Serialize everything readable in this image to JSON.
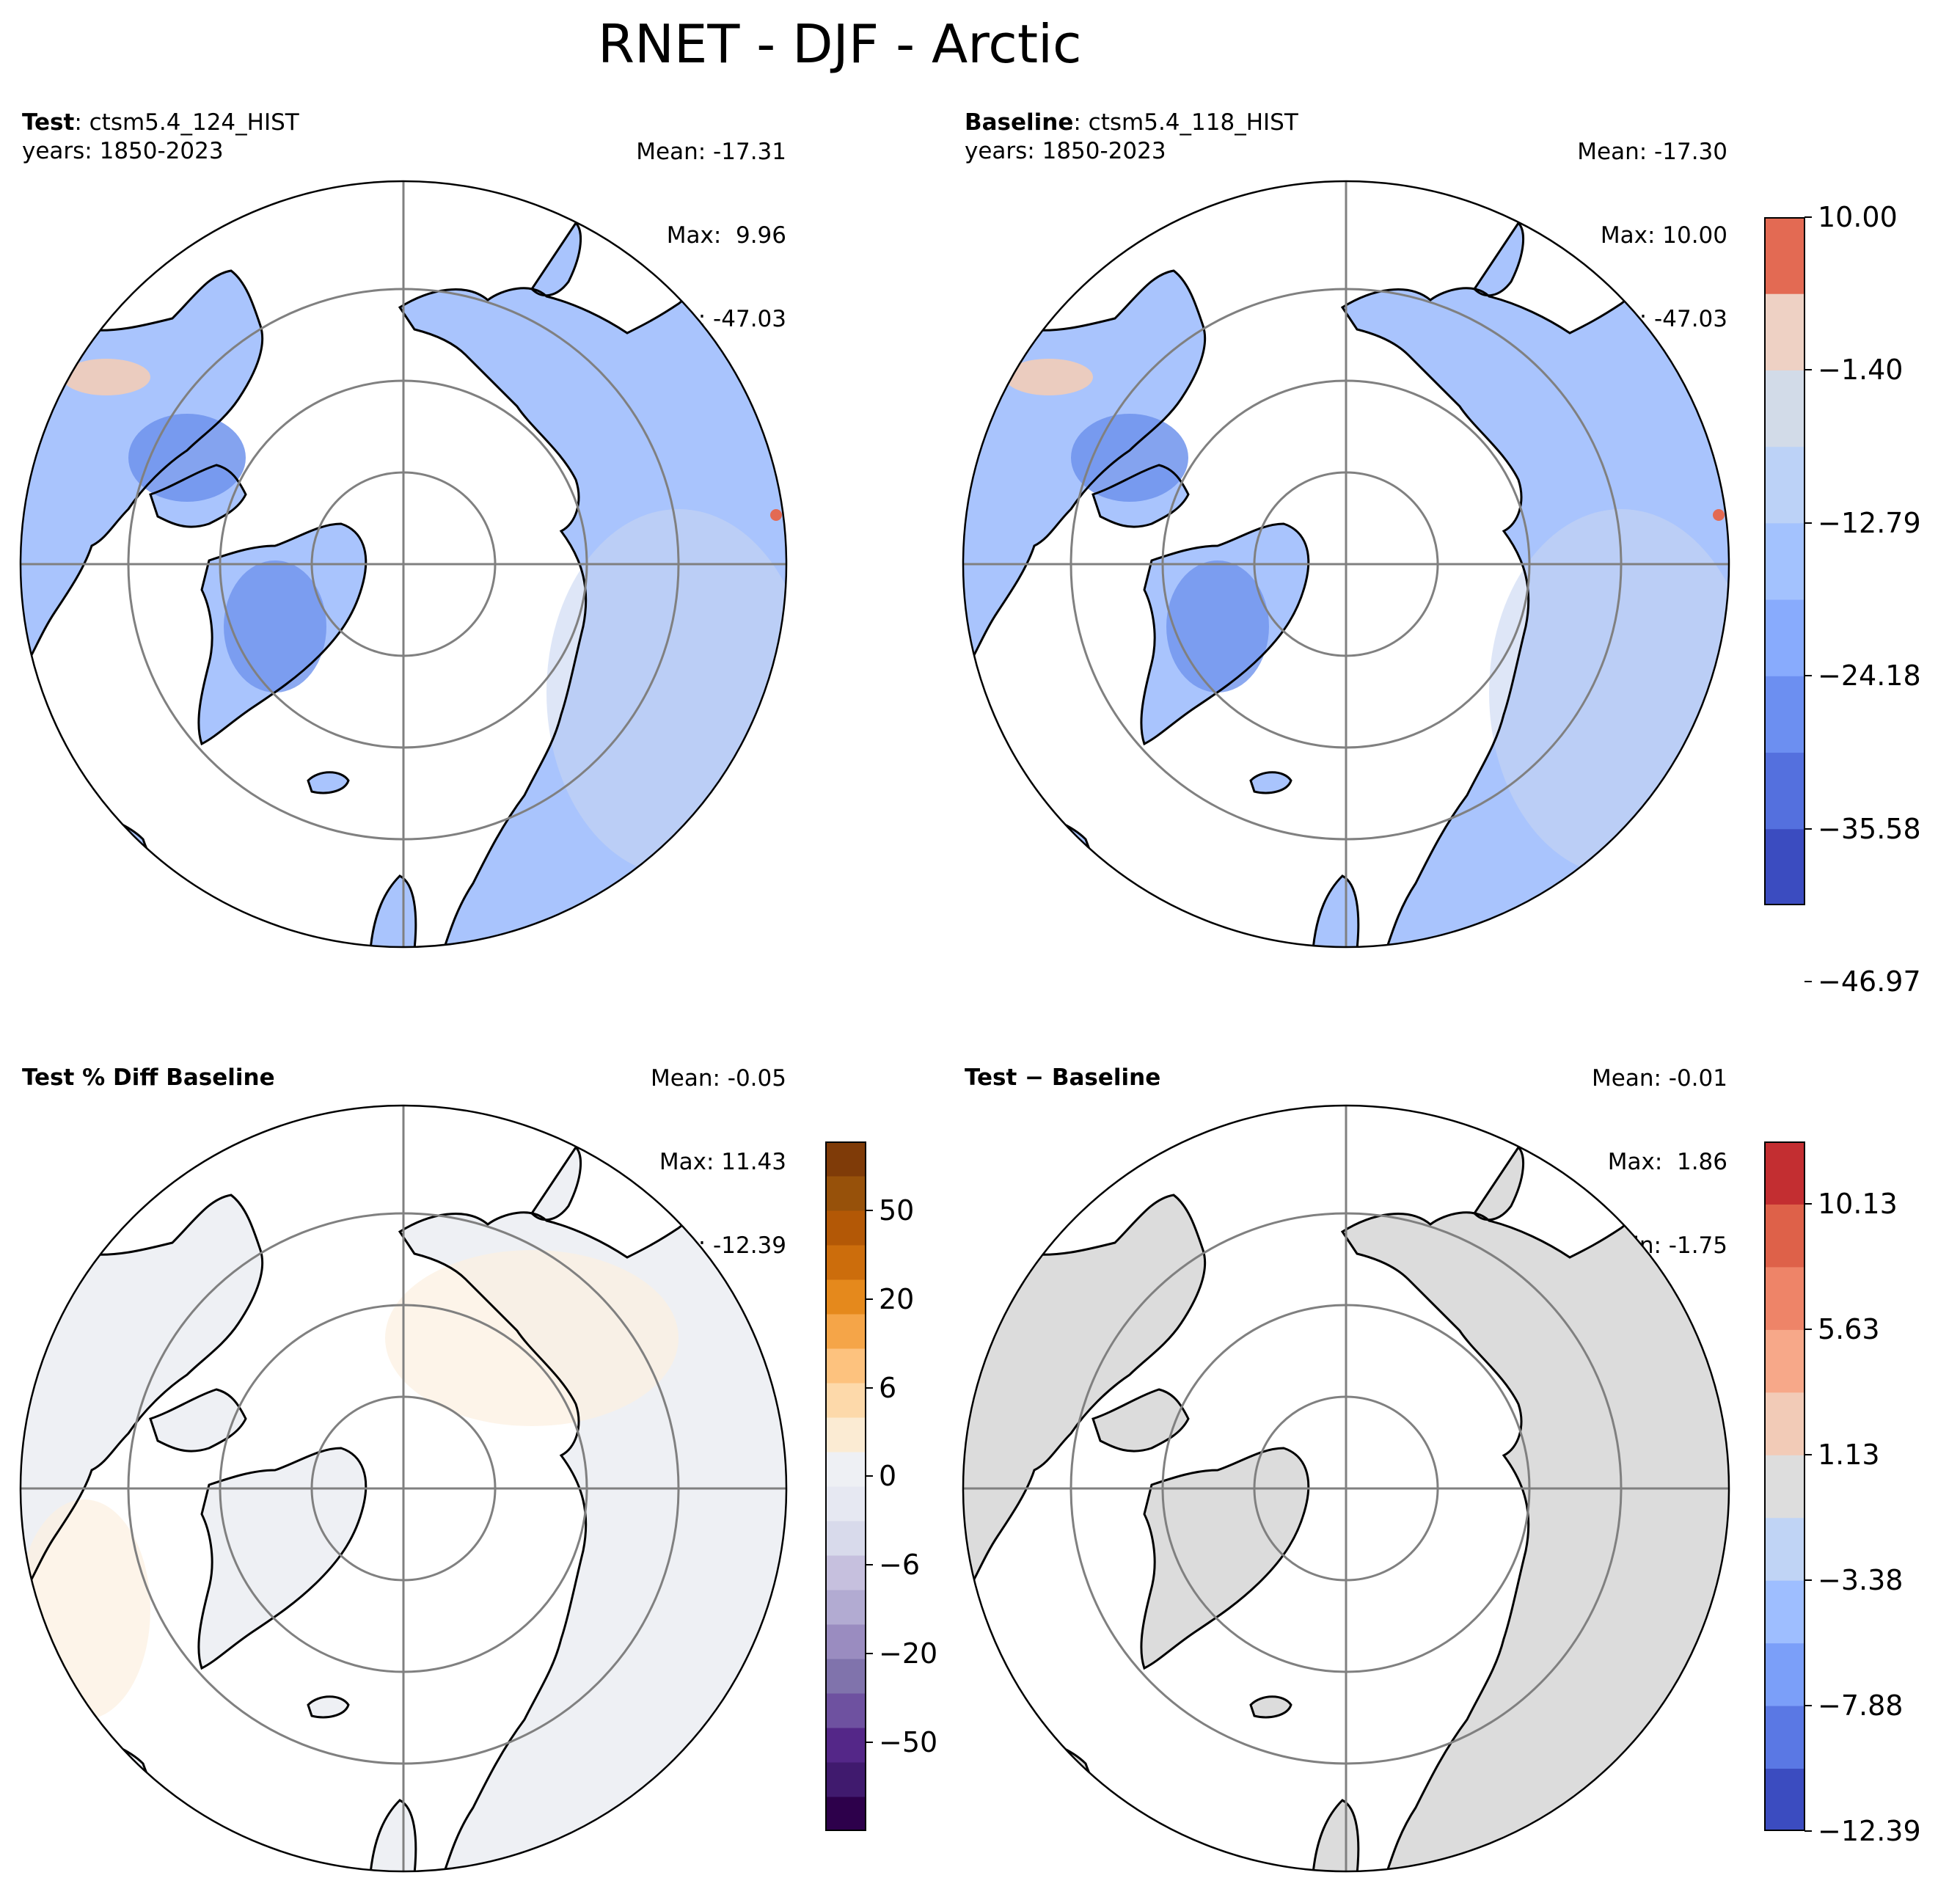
{
  "title": "RNET - DJF - Arctic",
  "panels": [
    {
      "header_bold": "Test",
      "header_rest": ": ctsm5.4_124_HIST",
      "years": "years: 1850-2023",
      "stats": {
        "mean": "Mean: -17.31",
        "max": "Max:  9.96",
        "min": "Min: -47.03"
      }
    },
    {
      "header_bold": "Baseline",
      "header_rest": ": ctsm5.4_118_HIST",
      "years": "years: 1850-2023",
      "stats": {
        "mean": "Mean: -17.30",
        "max": "Max: 10.00",
        "min": "Min: -47.03"
      }
    },
    {
      "header_bold": "Test % Diff Baseline",
      "header_rest": "",
      "years": "",
      "stats": {
        "mean": "Mean: -0.05",
        "max": "Max: 11.43",
        "min": "Min: -12.39"
      }
    },
    {
      "header_bold": "Test − Baseline",
      "header_rest": "",
      "years": "",
      "stats": {
        "mean": "Mean: -0.01",
        "max": "Max:  1.86",
        "min": "Min: -1.75"
      }
    }
  ],
  "colorbars": {
    "top": {
      "colors": [
        "#3b4cc0",
        "#5470de",
        "#6c8ff1",
        "#88abfd",
        "#a3c2fe",
        "#bcd2f7",
        "#d2dbe8",
        "#eed1c4",
        "#e36a53"
      ],
      "ticks": [
        "10.00",
        "−1.40",
        "−12.79",
        "−24.18",
        "−35.58",
        "−46.97"
      ]
    },
    "pct": {
      "colors": [
        "#2d004b",
        "#401a6e",
        "#542788",
        "#6e51a0",
        "#8073ac",
        "#9a8cc0",
        "#b2abd2",
        "#c6c0de",
        "#d8daeb",
        "#e6e8f2",
        "#eef0f4",
        "#fbebd3",
        "#fdd9aa",
        "#fdc27e",
        "#f5a548",
        "#e5891c",
        "#cc6d0c",
        "#b35806",
        "#97510a",
        "#7f3b08"
      ],
      "ticks": [
        "50",
        "20",
        "6",
        "0",
        "−6",
        "−20",
        "−50"
      ]
    },
    "diff": {
      "colors": [
        "#3b4cc0",
        "#5a78e4",
        "#7b9ff9",
        "#9ebeff",
        "#c0d4f5",
        "#dddddd",
        "#f2cbb7",
        "#f7a889",
        "#ee8468",
        "#de6149",
        "#c32e31"
      ],
      "ticks": [
        "10.13",
        "5.63",
        "1.13",
        "−3.38",
        "−7.88",
        "−12.39"
      ]
    }
  },
  "map_colors": {
    "ocean": "#ffffff",
    "land_top": "#a9c4fd",
    "land_top_dark": "#6f93ec",
    "land_top_light": "#c8d6f2",
    "land_top_warm": "#f2cdb8",
    "land_pct": "#eef0f4",
    "land_pct_warm": "#fcefdf",
    "land_diff": "#dcdcdc",
    "graticule": "#808080"
  }
}
